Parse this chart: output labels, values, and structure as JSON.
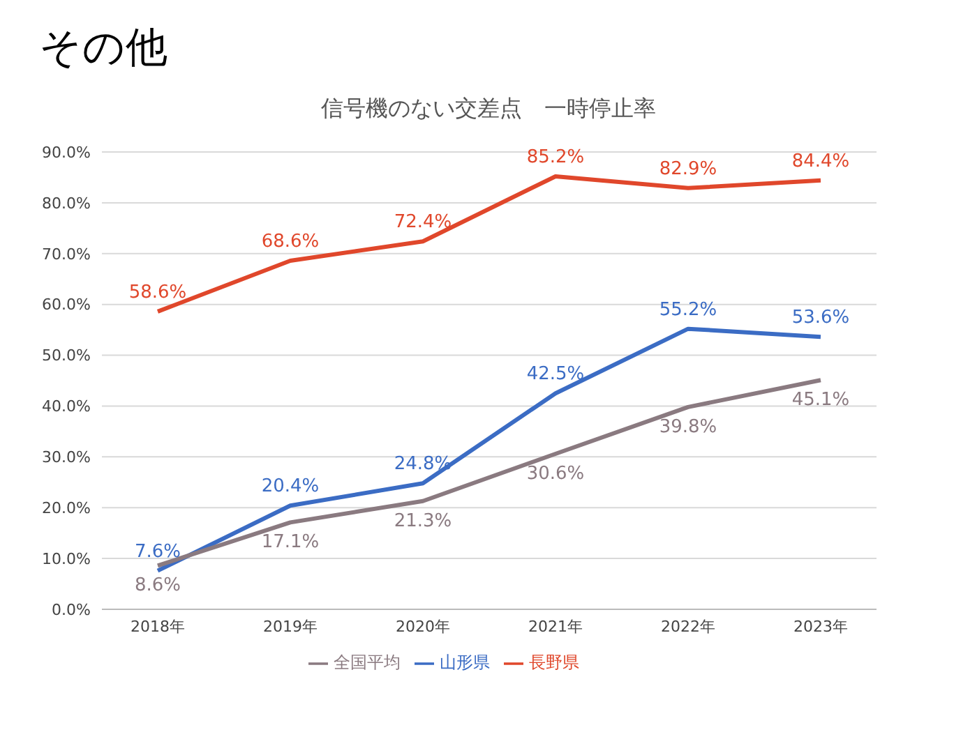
{
  "chart_data": {
    "type": "line",
    "title": "信号機のない交差点　一時停止率",
    "annotations": [
      "その他"
    ],
    "categories": [
      "2018年",
      "2019年",
      "2020年",
      "2021年",
      "2022年",
      "2023年"
    ],
    "series": [
      {
        "name": "山形県",
        "color": "#3b6cc4",
        "values": [
          7.6,
          20.4,
          24.8,
          42.5,
          55.2,
          53.6
        ],
        "value_labels": [
          "7.6%",
          "20.4%",
          "24.8%",
          "42.5%",
          "55.2%",
          "53.6%"
        ]
      },
      {
        "name": "長野県",
        "color": "#e0472b",
        "values": [
          58.6,
          68.6,
          72.4,
          85.2,
          82.9,
          84.4
        ],
        "value_labels": [
          "58.6%",
          "68.6%",
          "72.4%",
          "85.2%",
          "82.9%",
          "84.4%"
        ]
      },
      {
        "name": "全国平均",
        "color": "#8a7a80",
        "values": [
          8.6,
          17.1,
          21.3,
          30.6,
          39.8,
          45.1
        ],
        "value_labels": [
          "8.6%",
          "17.1%",
          "21.3%",
          "30.6%",
          "39.8%",
          "45.1%"
        ]
      }
    ],
    "ylim": [
      0,
      90
    ],
    "yticks": [
      {
        "value": 0,
        "label": "0.0%"
      },
      {
        "value": 10,
        "label": "10.0%"
      },
      {
        "value": 20,
        "label": "20.0%"
      },
      {
        "value": 30,
        "label": "30.0%"
      },
      {
        "value": 40,
        "label": "40.0%"
      },
      {
        "value": 50,
        "label": "50.0%"
      },
      {
        "value": 60,
        "label": "60.0%"
      },
      {
        "value": 70,
        "label": "70.0%"
      },
      {
        "value": 80,
        "label": "80.0%"
      },
      {
        "value": 90,
        "label": "90.0%"
      }
    ],
    "grid": "y",
    "legend": "bottom",
    "marker": "none",
    "line_style": "solid"
  }
}
